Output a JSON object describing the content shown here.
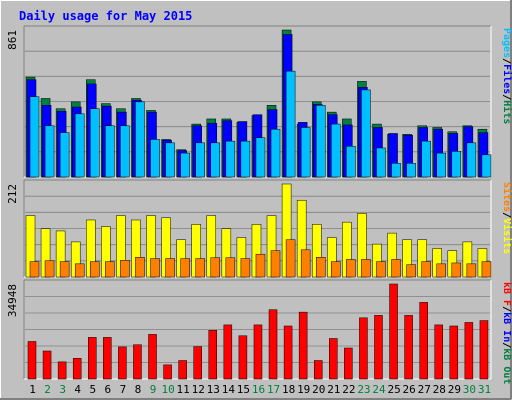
{
  "title": "Daily usage for May 2015",
  "colors": {
    "background": "#c0c0c0",
    "panel": "#c0c0c0",
    "border_light": "#ffffff",
    "border_dark": "#808080",
    "title": "#0000ff",
    "hits": "#008040",
    "files": "#0000ff",
    "pages": "#00c0ff",
    "visits": "#ffff00",
    "sites": "#ff8000",
    "kbin": "#0000ff",
    "kbout": "#008040",
    "kbf": "#ff0000",
    "weekend": "#008040",
    "weekday": "#000000"
  },
  "chart_data": [
    {
      "type": "bar",
      "panel": "top",
      "ymax_label": "861",
      "ymax": 861,
      "legend": [
        "Hits",
        "Files",
        "Pages"
      ],
      "series": [
        {
          "name": "Hits",
          "values": [
            585,
            460,
            400,
            440,
            570,
            430,
            400,
            460,
            390,
            220,
            160,
            310,
            340,
            340,
            320,
            360,
            420,
            861,
            310,
            440,
            380,
            340,
            560,
            310,
            250,
            250,
            300,
            290,
            265,
            300,
            280
          ]
        },
        {
          "name": "Files",
          "values": [
            570,
            420,
            385,
            410,
            545,
            415,
            380,
            450,
            380,
            215,
            155,
            300,
            315,
            330,
            325,
            365,
            395,
            835,
            320,
            425,
            365,
            305,
            525,
            290,
            255,
            245,
            290,
            280,
            255,
            295,
            260
          ]
        },
        {
          "name": "Pages",
          "values": [
            470,
            300,
            260,
            370,
            400,
            300,
            300,
            440,
            220,
            200,
            140,
            200,
            200,
            210,
            210,
            230,
            280,
            620,
            290,
            420,
            310,
            180,
            510,
            170,
            80,
            80,
            210,
            140,
            150,
            200,
            130
          ]
        }
      ]
    },
    {
      "type": "bar",
      "panel": "middle",
      "ymax_label": "212",
      "ymax": 212,
      "legend": [
        "Visits",
        "Sites"
      ],
      "series": [
        {
          "name": "Visits",
          "values": [
            140,
            110,
            105,
            80,
            130,
            115,
            140,
            130,
            140,
            135,
            85,
            120,
            140,
            110,
            90,
            120,
            140,
            212,
            175,
            120,
            90,
            125,
            145,
            75,
            100,
            85,
            85,
            65,
            60,
            80,
            65
          ]
        },
        {
          "name": "Sites",
          "values": [
            35,
            37,
            35,
            30,
            35,
            35,
            38,
            45,
            42,
            42,
            42,
            42,
            44,
            44,
            42,
            52,
            60,
            85,
            62,
            45,
            35,
            40,
            40,
            35,
            40,
            28,
            35,
            30,
            32,
            30,
            35
          ]
        }
      ]
    },
    {
      "type": "bar",
      "panel": "bottom",
      "ymax_label": "34948",
      "ymax": 34948,
      "legend": [
        "kB F",
        "kB In",
        "kB Out"
      ],
      "series": [
        {
          "name": "kB F",
          "values": [
            13800,
            10300,
            6300,
            7600,
            15300,
            15300,
            11800,
            12600,
            16400,
            5200,
            6800,
            11900,
            17900,
            19900,
            15900,
            19900,
            25500,
            19500,
            24600,
            6800,
            14900,
            11400,
            22500,
            23400,
            34948,
            23400,
            28200,
            19900,
            19500,
            20800,
            21500
          ]
        }
      ]
    }
  ],
  "x_labels": [
    "1",
    "2",
    "3",
    "4",
    "5",
    "6",
    "7",
    "8",
    "9",
    "10",
    "11",
    "12",
    "13",
    "14",
    "15",
    "16",
    "17",
    "18",
    "19",
    "20",
    "21",
    "22",
    "23",
    "24",
    "25",
    "26",
    "27",
    "28",
    "29",
    "30",
    "31"
  ],
  "weekend_days": [
    2,
    3,
    9,
    10,
    16,
    17,
    23,
    24,
    30,
    31
  ]
}
